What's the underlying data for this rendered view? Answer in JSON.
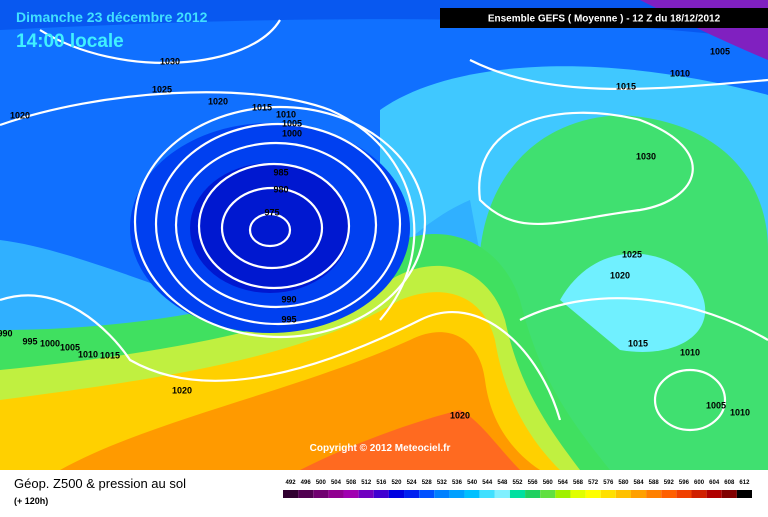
{
  "header": {
    "date": "Dimanche 23 décembre 2012",
    "time": "14:00 locale",
    "model": "Ensemble GEFS ( Moyenne )  -  12 Z du 18/12/2012"
  },
  "copyright": "Copyright © 2012 Meteociel.fr",
  "footer": {
    "title": "Géop. Z500 & pression au sol",
    "lead": "(+ 120h)"
  },
  "isobar_labels": [
    1030,
    1025,
    1020,
    1015,
    1010,
    1005,
    1000,
    985,
    980,
    975,
    990,
    995,
    1020,
    990,
    995,
    1000,
    1005,
    1010,
    1015,
    1020,
    1020,
    1005,
    1010,
    1015,
    1030,
    1025,
    1020,
    1015,
    1010,
    1005,
    1010
  ],
  "scale": {
    "values": [
      492,
      496,
      500,
      504,
      508,
      512,
      516,
      520,
      524,
      528,
      532,
      536,
      540,
      544,
      548,
      552,
      556,
      560,
      564,
      568,
      572,
      576,
      580,
      584,
      588,
      592,
      596,
      600,
      604,
      608,
      612
    ],
    "colors": [
      "#300030",
      "#500050",
      "#700070",
      "#900090",
      "#a000b0",
      "#7000c0",
      "#4000d0",
      "#0000e0",
      "#0020f0",
      "#0050ff",
      "#0080ff",
      "#00a0ff",
      "#00c0ff",
      "#40e0ff",
      "#80f0ff",
      "#00e0a0",
      "#20d060",
      "#60e040",
      "#a0f000",
      "#e0ff00",
      "#ffff00",
      "#ffe000",
      "#ffc000",
      "#ffa000",
      "#ff8000",
      "#ff6000",
      "#f04000",
      "#d02000",
      "#b00000",
      "#800000",
      "#000000"
    ]
  }
}
